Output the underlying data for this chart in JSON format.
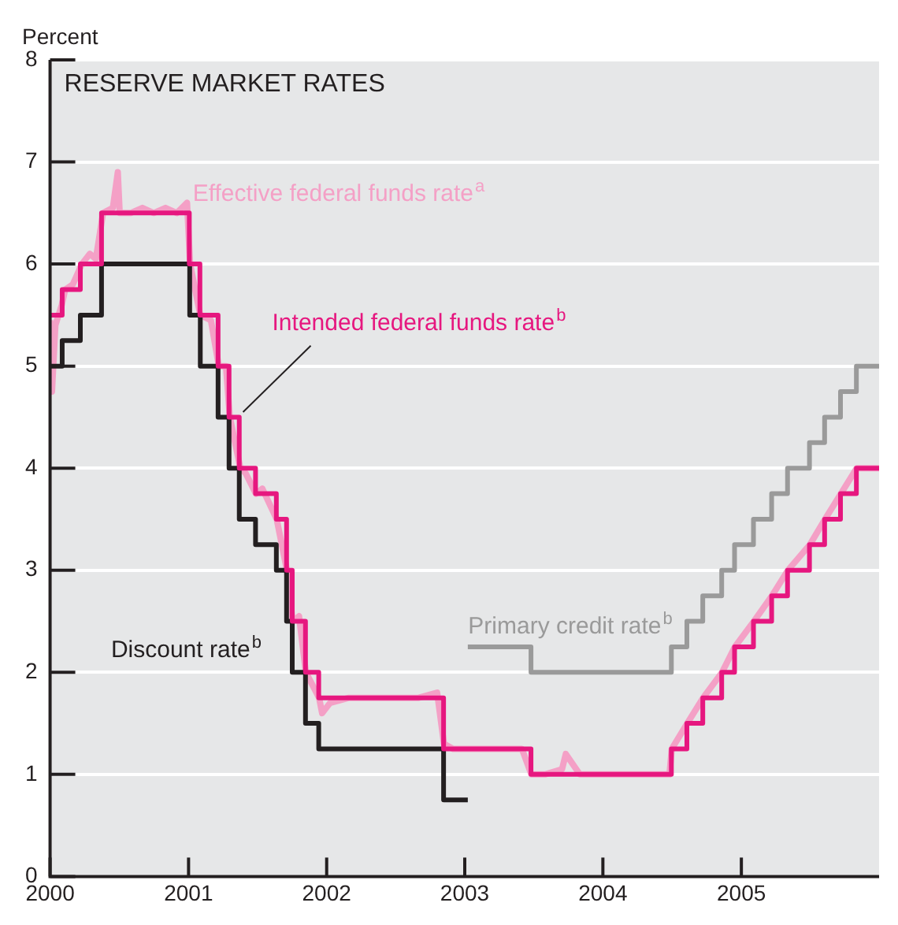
{
  "chart_data": {
    "type": "step",
    "title": "RESERVE MARKET RATES",
    "ylabel": "Percent",
    "xlim": [
      "2000-01-01",
      "2005-12-31"
    ],
    "xticks": [
      "2000",
      "2001",
      "2002",
      "2003",
      "2004",
      "2005"
    ],
    "ylim": [
      0,
      8
    ],
    "yticks": [
      0,
      1,
      2,
      3,
      4,
      5,
      6,
      7,
      8
    ],
    "grid": "y",
    "legend": false,
    "series": [
      {
        "name": "Effective federal funds rate$^{a}$",
        "type": "line",
        "color": "#f4a0c6",
        "x": [
          "2000-01-01",
          "2000-01-06",
          "2000-01-15",
          "2000-02-01",
          "2000-02-10",
          "2000-03-01",
          "2000-03-25",
          "2000-04-15",
          "2000-05-01",
          "2000-05-20",
          "2000-06-15",
          "2000-06-28",
          "2000-07-03",
          "2000-08-01",
          "2000-09-01",
          "2000-10-01",
          "2000-11-01",
          "2000-12-01",
          "2000-12-28",
          "2001-01-05",
          "2001-02-01",
          "2001-03-01",
          "2001-03-22",
          "2001-04-10",
          "2001-04-20",
          "2001-05-18",
          "2001-06-01",
          "2001-06-28",
          "2001-07-15",
          "2001-08-22",
          "2001-09-18",
          "2001-10-03",
          "2001-10-20",
          "2001-11-07",
          "2001-12-12",
          "2001-12-20",
          "2002-01-10",
          "2002-03-01",
          "2002-05-01",
          "2002-07-01",
          "2002-09-01",
          "2002-10-20",
          "2002-11-07",
          "2002-12-01",
          "2003-02-01",
          "2003-04-01",
          "2003-06-01",
          "2003-06-26",
          "2003-08-01",
          "2003-09-15",
          "2003-09-25",
          "2003-11-01",
          "2004-01-01",
          "2004-03-01",
          "2004-05-01",
          "2004-06-25",
          "2004-07-01",
          "2004-08-11",
          "2004-09-22",
          "2004-11-11",
          "2004-12-15",
          "2005-02-03",
          "2005-03-23",
          "2005-05-04",
          "2005-07-01",
          "2005-08-10",
          "2005-09-21",
          "2005-11-02",
          "2005-12-31"
        ],
        "values": [
          5.45,
          4.75,
          5.4,
          5.6,
          5.75,
          5.8,
          6.0,
          6.1,
          6.05,
          6.5,
          6.55,
          6.9,
          6.5,
          6.5,
          6.55,
          6.5,
          6.55,
          6.5,
          6.6,
          6.0,
          5.5,
          5.45,
          5.0,
          5.0,
          4.5,
          4.0,
          3.95,
          3.75,
          3.8,
          3.5,
          3.0,
          2.5,
          2.55,
          2.0,
          1.75,
          1.6,
          1.7,
          1.75,
          1.75,
          1.75,
          1.75,
          1.8,
          1.3,
          1.25,
          1.25,
          1.25,
          1.25,
          1.0,
          1.0,
          1.05,
          1.2,
          1.0,
          1.0,
          1.0,
          1.0,
          1.0,
          1.25,
          1.5,
          1.75,
          2.0,
          2.25,
          2.5,
          2.75,
          3.0,
          3.25,
          3.5,
          3.75,
          4.0,
          4.0
        ]
      },
      {
        "name": "Intended federal funds rate$^{b}$",
        "color": "#e6177f",
        "x": [
          "2000-01-01",
          "2000-02-02",
          "2000-03-21",
          "2000-05-16",
          "2001-01-03",
          "2001-01-31",
          "2001-03-20",
          "2001-04-18",
          "2001-05-15",
          "2001-06-27",
          "2001-08-21",
          "2001-09-17",
          "2001-10-02",
          "2001-11-06",
          "2001-12-11",
          "2002-11-06",
          "2003-06-25",
          "2004-06-30",
          "2004-08-10",
          "2004-09-21",
          "2004-11-10",
          "2004-12-14",
          "2005-02-02",
          "2005-03-22",
          "2005-05-03",
          "2005-06-30",
          "2005-08-09",
          "2005-09-20",
          "2005-11-01",
          "2005-12-31"
        ],
        "values": [
          5.5,
          5.75,
          6.0,
          6.5,
          6.0,
          5.5,
          5.0,
          4.5,
          4.0,
          3.75,
          3.5,
          3.0,
          2.5,
          2.0,
          1.75,
          1.25,
          1.0,
          1.25,
          1.5,
          1.75,
          2.0,
          2.25,
          2.5,
          2.75,
          3.0,
          3.25,
          3.5,
          3.75,
          4.0,
          4.0
        ]
      },
      {
        "name": "Discount rate$^{b}$",
        "color": "#231f20",
        "x": [
          "2000-01-01",
          "2000-02-02",
          "2000-03-21",
          "2000-05-16",
          "2001-01-04",
          "2001-02-01",
          "2001-03-20",
          "2001-04-18",
          "2001-05-15",
          "2001-06-27",
          "2001-08-21",
          "2001-09-17",
          "2001-10-02",
          "2001-11-06",
          "2001-12-11",
          "2002-11-06",
          "2003-01-09"
        ],
        "values": [
          5.0,
          5.25,
          5.5,
          6.0,
          5.5,
          5.0,
          4.5,
          4.0,
          3.5,
          3.25,
          3.0,
          2.5,
          2.0,
          1.5,
          1.25,
          0.75,
          0.75
        ]
      },
      {
        "name": "Primary credit rate$^{b}$",
        "color": "#9a9a9a",
        "x": [
          "2003-01-09",
          "2003-06-25",
          "2004-06-30",
          "2004-08-10",
          "2004-09-21",
          "2004-11-10",
          "2004-12-14",
          "2005-02-02",
          "2005-03-22",
          "2005-05-03",
          "2005-06-30",
          "2005-08-09",
          "2005-09-20",
          "2005-11-01",
          "2005-12-31"
        ],
        "values": [
          2.25,
          2.0,
          2.25,
          2.5,
          2.75,
          3.0,
          3.25,
          3.5,
          3.75,
          4.0,
          4.25,
          4.5,
          4.75,
          5.0,
          5.0
        ]
      }
    ]
  }
}
